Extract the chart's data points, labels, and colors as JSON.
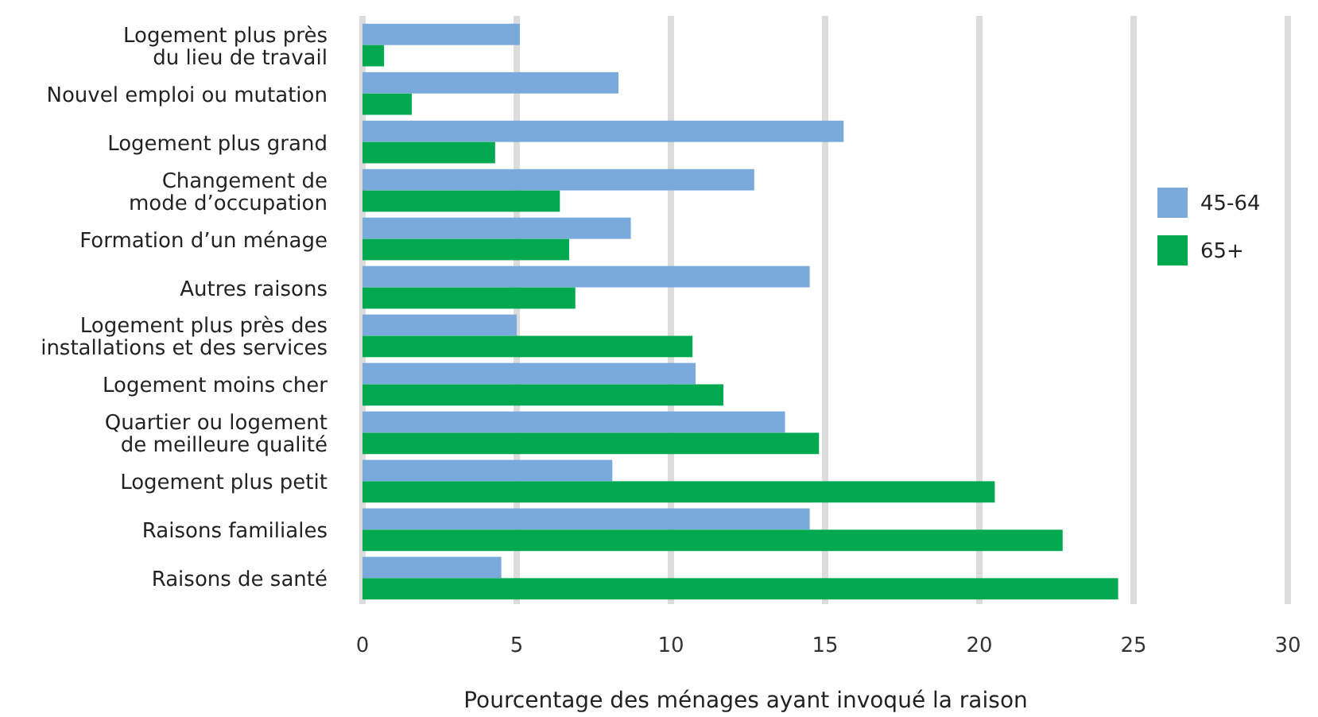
{
  "chart_data": {
    "type": "bar",
    "orientation": "horizontal",
    "categories": [
      "Logement plus près\ndu lieu de travail",
      "Nouvel emploi ou mutation",
      "Logement plus grand",
      "Changement de\nmode d’occupation",
      "Formation d’un ménage",
      "Autres raisons",
      "Logement plus près des\ninstallations et des services",
      "Logement moins cher",
      "Quartier ou logement\nde meilleure qualité",
      "Logement plus petit",
      "Raisons familiales",
      "Raisons de santé"
    ],
    "series": [
      {
        "name": "45-64",
        "color": "#7aaadb",
        "values": [
          5.1,
          8.3,
          15.6,
          12.7,
          8.7,
          14.5,
          5.0,
          10.8,
          13.7,
          8.1,
          14.5,
          4.5
        ]
      },
      {
        "name": "65+",
        "color": "#00a84f",
        "values": [
          0.7,
          1.6,
          4.3,
          6.4,
          6.7,
          6.9,
          10.7,
          11.7,
          14.8,
          20.5,
          22.7,
          24.5
        ]
      }
    ],
    "xlabel": "Pourcentage des ménages ayant invoqué la raison",
    "xlim": [
      0,
      30
    ],
    "xticks": [
      0,
      5,
      10,
      15,
      20,
      25,
      30
    ],
    "grid": "x",
    "legend": "right"
  }
}
